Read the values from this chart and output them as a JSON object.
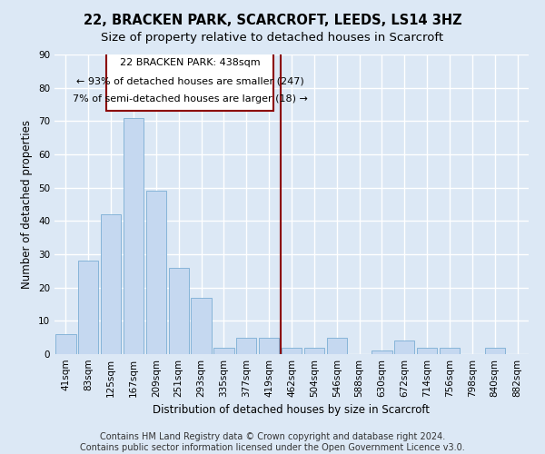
{
  "title": "22, BRACKEN PARK, SCARCROFT, LEEDS, LS14 3HZ",
  "subtitle": "Size of property relative to detached houses in Scarcroft",
  "xlabel": "Distribution of detached houses by size in Scarcroft",
  "ylabel": "Number of detached properties",
  "footer_line1": "Contains HM Land Registry data © Crown copyright and database right 2024.",
  "footer_line2": "Contains public sector information licensed under the Open Government Licence v3.0.",
  "categories": [
    "41sqm",
    "83sqm",
    "125sqm",
    "167sqm",
    "209sqm",
    "251sqm",
    "293sqm",
    "335sqm",
    "377sqm",
    "419sqm",
    "462sqm",
    "504sqm",
    "546sqm",
    "588sqm",
    "630sqm",
    "672sqm",
    "714sqm",
    "756sqm",
    "798sqm",
    "840sqm",
    "882sqm"
  ],
  "values": [
    6,
    28,
    42,
    71,
    49,
    26,
    17,
    2,
    5,
    5,
    2,
    2,
    5,
    0,
    1,
    4,
    2,
    2,
    0,
    2,
    0
  ],
  "bar_color": "#c5d8f0",
  "bar_edge_color": "#7aadd4",
  "background_color": "#dce8f5",
  "grid_color": "#ffffff",
  "vline_color": "#8b0000",
  "annotation_line1": "22 BRACKEN PARK: 438sqm",
  "annotation_line2": "← 93% of detached houses are smaller (247)",
  "annotation_line3": "7% of semi-detached houses are larger (18) →",
  "annotation_box_color": "#8b0000",
  "ylim": [
    0,
    90
  ],
  "yticks": [
    0,
    10,
    20,
    30,
    40,
    50,
    60,
    70,
    80,
    90
  ],
  "title_fontsize": 10.5,
  "subtitle_fontsize": 9.5,
  "axis_label_fontsize": 8.5,
  "tick_fontsize": 7.5,
  "footer_fontsize": 7.0,
  "annotation_fontsize": 8.0
}
